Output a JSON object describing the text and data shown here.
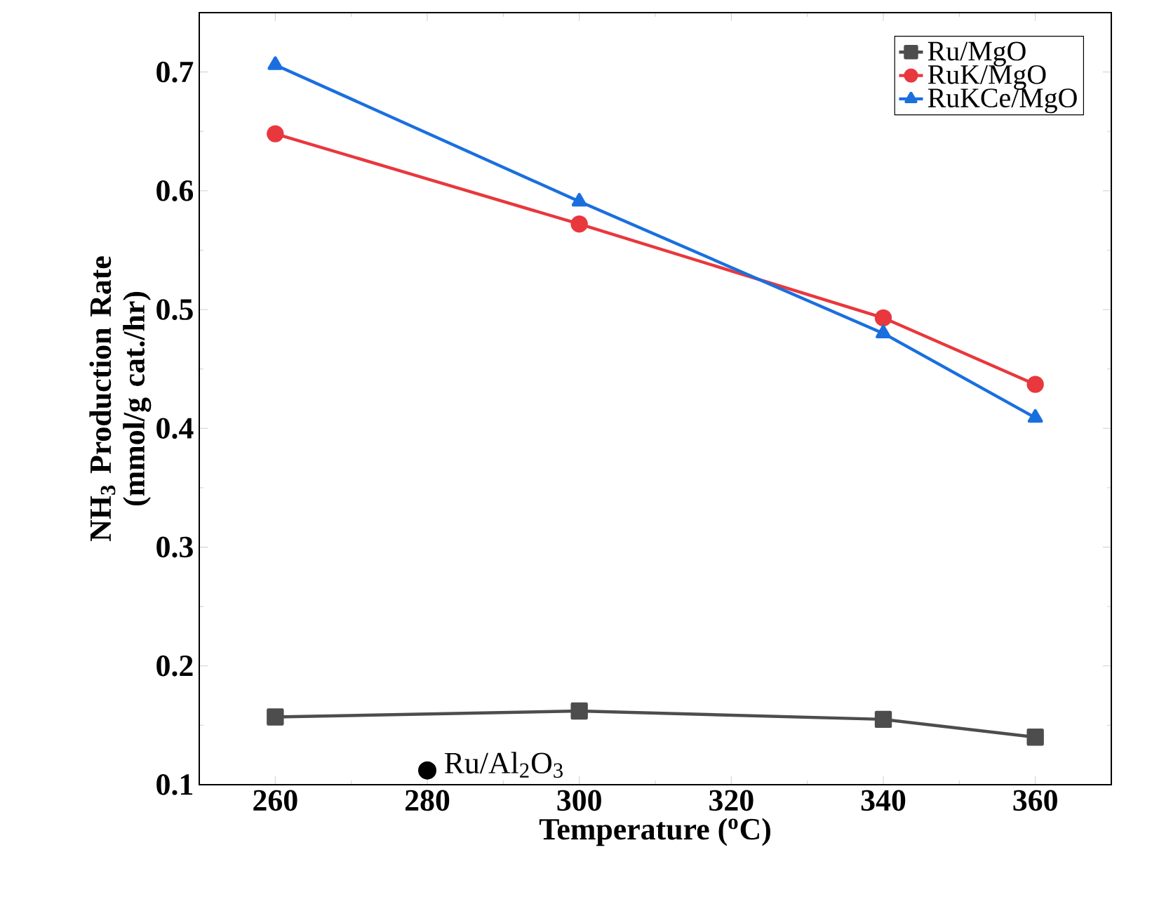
{
  "chart_data": {
    "type": "line",
    "xlabel": "Temperature ($^{o}$C)",
    "ylabel": "NH$_{3}$ Production Rate (mmol/g cat./hr)",
    "x": [
      260,
      300,
      340,
      360
    ],
    "series": [
      {
        "name": "Ru/MgO",
        "color": "#4d4d4d",
        "marker": "square",
        "values": [
          0.157,
          0.162,
          0.155,
          0.14
        ]
      },
      {
        "name": "RuK/MgO",
        "color": "#e8383d",
        "marker": "circle",
        "values": [
          0.648,
          0.572,
          0.493,
          0.437
        ]
      },
      {
        "name": "RuKCe/MgO",
        "color": "#1a6fdf",
        "marker": "triangle",
        "values": [
          0.706,
          0.591,
          0.48,
          0.409
        ]
      },
      {
        "name": "Ru/Al$_{2}$O$_{3}$",
        "type": "scatter",
        "color": "#000000",
        "marker": "circle",
        "x": [
          280
        ],
        "values": [
          0.112
        ]
      }
    ],
    "xlim": [
      250,
      370
    ],
    "xticks": [
      260,
      280,
      300,
      320,
      340,
      360
    ],
    "ylim": [
      0.1,
      0.75
    ],
    "yticks": [
      0.1,
      0.2,
      0.3,
      0.4,
      0.5,
      0.6,
      0.7
    ],
    "legend": "top right",
    "grid": false,
    "line_style": "solid"
  }
}
